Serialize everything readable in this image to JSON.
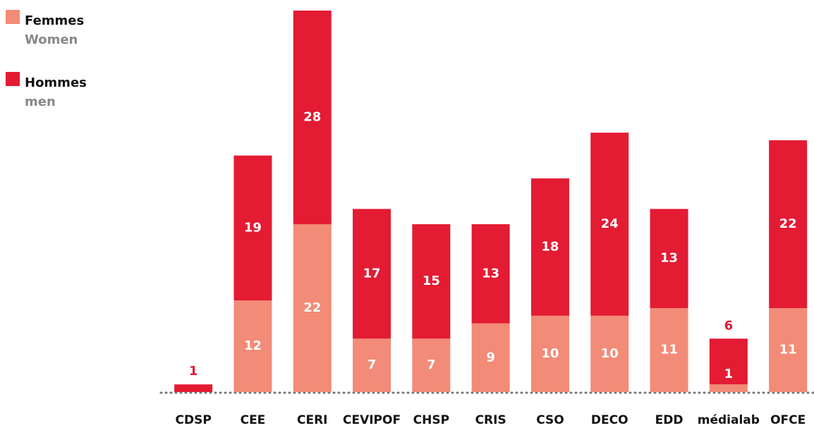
{
  "chart_data": {
    "type": "stacked-bar",
    "categories": [
      "CDSP",
      "CEE",
      "CERI",
      "CEVIPOF",
      "CHSP",
      "CRIS",
      "CSO",
      "DECO",
      "EDD",
      "médialab",
      "OFCE"
    ],
    "series": [
      {
        "name": "Femmes",
        "name_en": "Women",
        "color": "#f28b77",
        "values": [
          null,
          12,
          22,
          7,
          7,
          9,
          10,
          10,
          11,
          1,
          11
        ]
      },
      {
        "name": "Hommes",
        "name_en": "men",
        "color": "#e31b33",
        "values": [
          1,
          19,
          28,
          17,
          15,
          13,
          18,
          24,
          13,
          6,
          22
        ]
      }
    ],
    "ylim": [
      0,
      50
    ]
  }
}
